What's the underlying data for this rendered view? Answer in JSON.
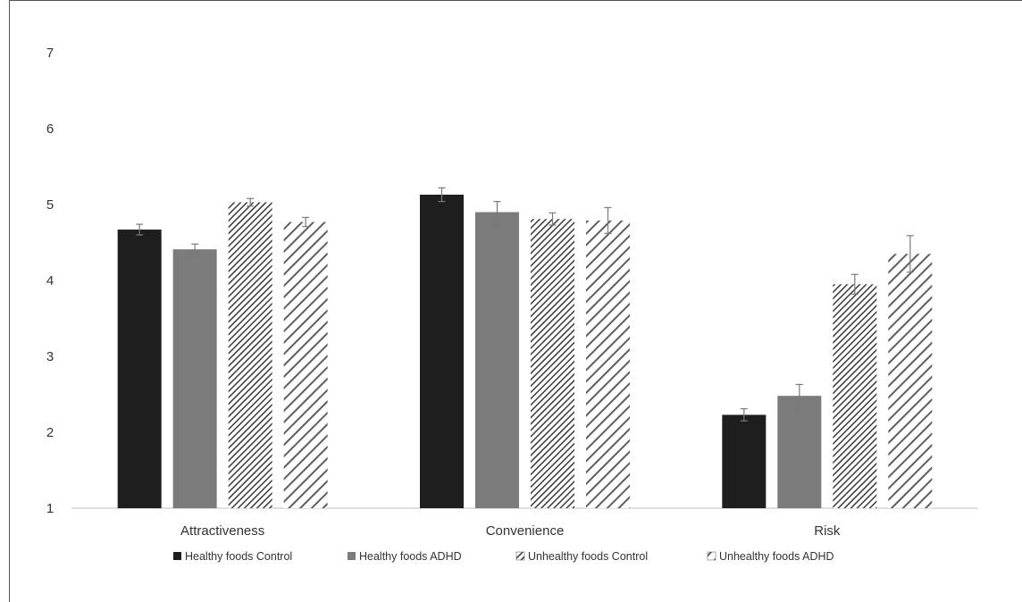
{
  "chart_data": {
    "type": "bar",
    "title": "",
    "xlabel": "",
    "ylabel": "",
    "ylim": [
      1,
      7
    ],
    "yticks": [
      1,
      2,
      3,
      4,
      5,
      6,
      7
    ],
    "grid": false,
    "legend_position": "bottom",
    "categories": [
      "Attractiveness",
      "Convenience",
      "Risk"
    ],
    "series": [
      {
        "name": "Healthy foods Control",
        "style": "solid",
        "color": "#1e1e1e",
        "values": [
          4.67,
          5.13,
          2.23
        ],
        "errors": [
          0.07,
          0.09,
          0.08
        ]
      },
      {
        "name": "Healthy foods ADHD",
        "style": "solid",
        "color": "#7b7b7b",
        "values": [
          4.41,
          4.9,
          2.48
        ],
        "errors": [
          0.07,
          0.14,
          0.15
        ]
      },
      {
        "name": "Unhealthy foods Control",
        "style": "dense-hatch",
        "color": "#444444",
        "values": [
          5.03,
          4.81,
          3.95
        ],
        "errors": [
          0.05,
          0.08,
          0.13
        ]
      },
      {
        "name": "Unhealthy foods ADHD",
        "style": "wide-hatch",
        "color": "#666666",
        "values": [
          4.77,
          4.79,
          4.35
        ],
        "errors": [
          0.06,
          0.17,
          0.24
        ]
      }
    ]
  }
}
